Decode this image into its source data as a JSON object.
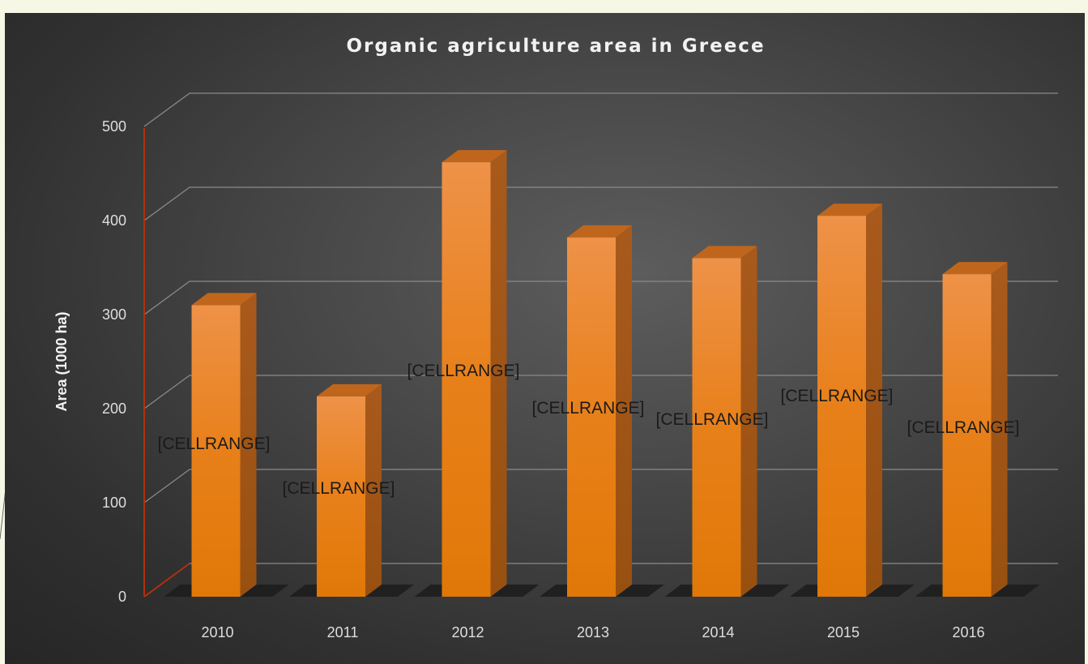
{
  "chart_data": {
    "type": "bar",
    "title": "Organic agriculture area in Greece",
    "ylabel": "Area (1000 ha)",
    "xlabel": "",
    "categories": [
      "2010",
      "2011",
      "2012",
      "2013",
      "2014",
      "2015",
      "2016"
    ],
    "values": [
      310,
      213,
      462,
      382,
      360,
      405,
      343
    ],
    "data_labels": [
      "[CELLRANGE]",
      "[CELLRANGE]",
      "[CELLRANGE]",
      "[CELLRANGE]",
      "[CELLRANGE]",
      "[CELLRANGE]",
      "[CELLRANGE]"
    ],
    "ylim": [
      0,
      500
    ],
    "yticks": [
      "0",
      "100",
      "200",
      "300",
      "400",
      "500"
    ],
    "grid": true,
    "legend": "none",
    "style": "3d-column",
    "colors": {
      "bar_front": "#e8801a",
      "bar_top": "#c0661c",
      "bar_side": "#985010",
      "axis_line": "#b03010"
    }
  }
}
